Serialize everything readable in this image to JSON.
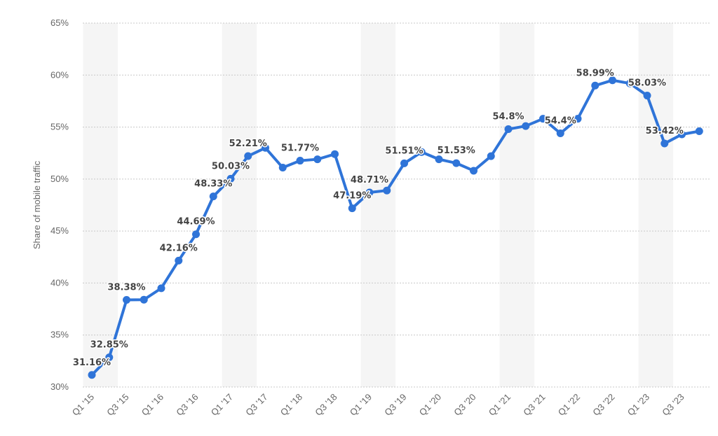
{
  "chart_data": {
    "type": "line",
    "ylabel": "Share of mobile traffic",
    "xlabel": "",
    "ylim": [
      30,
      65
    ],
    "y_ticks": [
      30,
      35,
      40,
      45,
      50,
      55,
      60,
      65
    ],
    "y_tick_labels": [
      "30%",
      "35%",
      "40%",
      "45%",
      "50%",
      "55%",
      "60%",
      "65%"
    ],
    "grid": "horizontal dotted",
    "categories": [
      "Q1 '15",
      "Q2 '15",
      "Q3 '15",
      "Q4 '15",
      "Q1 '16",
      "Q2 '16",
      "Q3 '16",
      "Q4 '16",
      "Q1 '17",
      "Q2 '17",
      "Q3 '17",
      "Q4 '17",
      "Q1 '18",
      "Q2 '18",
      "Q3 '18",
      "Q4 '18",
      "Q1 '19",
      "Q2 '19",
      "Q3 '19",
      "Q4 '19",
      "Q1 '20",
      "Q2 '20",
      "Q3 '20",
      "Q4 '20",
      "Q1 '21",
      "Q2 '21",
      "Q3 '21",
      "Q4 '21",
      "Q1 '22",
      "Q2 '22",
      "Q3 '22",
      "Q4 '22",
      "Q1 '23",
      "Q2 '23",
      "Q3 '23",
      "Q4 '23"
    ],
    "x_tick_labels": [
      "Q1 '15",
      "Q3 '15",
      "Q1 '16",
      "Q3 '16",
      "Q1 '17",
      "Q3 '17",
      "Q1 '18",
      "Q3 '18",
      "Q1 '19",
      "Q3 '19",
      "Q1 '20",
      "Q3 '20",
      "Q1 '21",
      "Q3 '21",
      "Q1 '22",
      "Q3 '22",
      "Q1 '23",
      "Q3 '23"
    ],
    "series": [
      {
        "name": "",
        "color": "#2f74d8",
        "values": [
          31.16,
          32.85,
          38.38,
          38.4,
          39.5,
          42.16,
          44.69,
          48.33,
          50.03,
          52.21,
          53.0,
          51.1,
          51.77,
          51.9,
          52.4,
          47.19,
          48.71,
          48.9,
          51.51,
          52.6,
          51.9,
          51.53,
          50.8,
          52.2,
          54.8,
          55.1,
          55.8,
          54.4,
          55.8,
          58.99,
          59.5,
          59.2,
          58.03,
          53.42,
          54.3,
          54.6
        ]
      }
    ],
    "data_labels": [
      {
        "index": 0,
        "text": "31.16%"
      },
      {
        "index": 1,
        "text": "32.85%"
      },
      {
        "index": 2,
        "text": "38.38%"
      },
      {
        "index": 5,
        "text": "42.16%"
      },
      {
        "index": 6,
        "text": "44.69%"
      },
      {
        "index": 7,
        "text": "48.33%"
      },
      {
        "index": 8,
        "text": "50.03%"
      },
      {
        "index": 9,
        "text": "52.21%"
      },
      {
        "index": 12,
        "text": "51.77%"
      },
      {
        "index": 15,
        "text": "47.19%"
      },
      {
        "index": 16,
        "text": "48.71%"
      },
      {
        "index": 18,
        "text": "51.51%"
      },
      {
        "index": 21,
        "text": "51.53%"
      },
      {
        "index": 24,
        "text": "54.8%"
      },
      {
        "index": 27,
        "text": "54.4%"
      },
      {
        "index": 29,
        "text": "58.99%"
      },
      {
        "index": 32,
        "text": "58.03%"
      },
      {
        "index": 33,
        "text": "53.42%"
      }
    ]
  }
}
